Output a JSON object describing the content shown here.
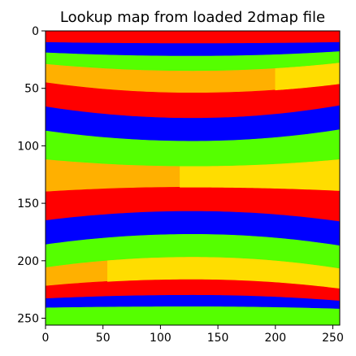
{
  "chart_data": {
    "type": "heatmap",
    "title": "Lookup map from loaded 2dmap file",
    "xlabel": "",
    "ylabel": "",
    "xlim": [
      0,
      256
    ],
    "ylim": [
      256,
      0
    ],
    "y_inverted": true,
    "x_ticks": [
      "0",
      "50",
      "100",
      "150",
      "200",
      "250"
    ],
    "x_tick_values": [
      0,
      50,
      100,
      150,
      200,
      250
    ],
    "y_ticks": [
      "0",
      "50",
      "100",
      "150",
      "200",
      "250"
    ],
    "y_tick_values": [
      0,
      50,
      100,
      150,
      200,
      250
    ],
    "grid": false,
    "colors": {
      "red": "#ff0000",
      "blue": "#0000ff",
      "green": "#55ff00",
      "orange": "#ffb000",
      "yellow": "#ffdd00"
    },
    "color_cycle": [
      "red",
      "blue",
      "green",
      "orange"
    ],
    "band_boundaries": [
      {
        "y_at_x0": 10,
        "y_at_center": 11,
        "y_at_x256": 10
      },
      {
        "y_at_x0": 19,
        "y_at_center": 22,
        "y_at_x256": 18
      },
      {
        "y_at_x0": 29,
        "y_at_center": 35,
        "y_at_x256": 28
      },
      {
        "y_at_x0": 45,
        "y_at_center": 54,
        "y_at_x256": 46
      },
      {
        "y_at_x0": 66,
        "y_at_center": 76,
        "y_at_x256": 65
      },
      {
        "y_at_x0": 87,
        "y_at_center": 96,
        "y_at_x256": 86
      },
      {
        "y_at_x0": 112,
        "y_at_center": 118,
        "y_at_x256": 112
      },
      {
        "y_at_x0": 140,
        "y_at_center": 136,
        "y_at_x256": 139
      },
      {
        "y_at_x0": 165,
        "y_at_center": 157,
        "y_at_x256": 166
      },
      {
        "y_at_x0": 186,
        "y_at_center": 177,
        "y_at_x256": 187
      },
      {
        "y_at_x0": 206,
        "y_at_center": 197,
        "y_at_x256": 207
      },
      {
        "y_at_x0": 222,
        "y_at_center": 216,
        "y_at_x256": 224
      },
      {
        "y_at_x0": 233,
        "y_at_center": 230,
        "y_at_x256": 235
      },
      {
        "y_at_x0": 241,
        "y_at_center": 240,
        "y_at_x256": 242
      }
    ],
    "yellow_patches": [
      {
        "band_index": 3,
        "x_from": 200,
        "x_to": 256
      },
      {
        "band_index": 7,
        "x_from": 117,
        "x_to": 256
      },
      {
        "band_index": 11,
        "x_from": 54,
        "x_to": 256
      }
    ]
  }
}
